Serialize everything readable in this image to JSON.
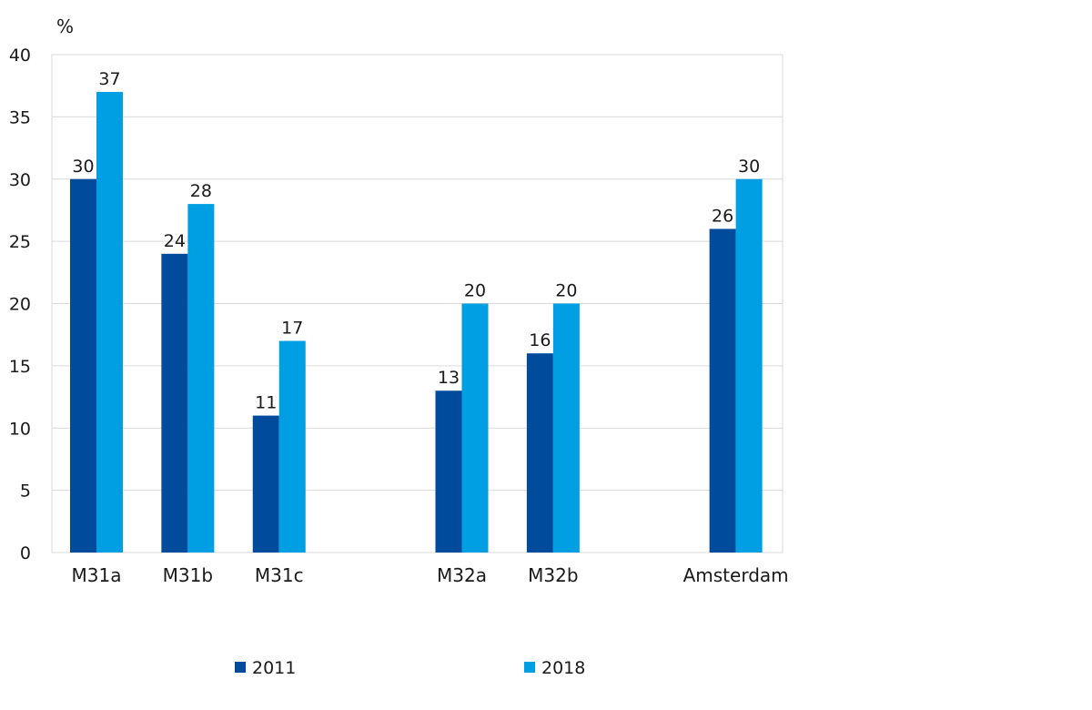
{
  "chart_data": {
    "type": "bar",
    "ylabel": "%",
    "ylim": [
      0,
      40
    ],
    "yticks": [
      0,
      5,
      10,
      15,
      20,
      25,
      30,
      35,
      40
    ],
    "grid": true,
    "legend_position": "bottom",
    "groups": [
      {
        "label": "M31a",
        "values": [
          30,
          37
        ]
      },
      {
        "label": "M31b",
        "values": [
          24,
          28
        ]
      },
      {
        "label": "M31c",
        "values": [
          11,
          17
        ]
      },
      {
        "label": "",
        "values": [
          null,
          null
        ]
      },
      {
        "label": "M32a",
        "values": [
          13,
          20
        ]
      },
      {
        "label": "M32b",
        "values": [
          16,
          20
        ]
      },
      {
        "label": "",
        "values": [
          null,
          null
        ]
      },
      {
        "label": "Amsterdam",
        "values": [
          26,
          30
        ]
      }
    ],
    "series": [
      {
        "name": "2011",
        "color": "#004b9b"
      },
      {
        "name": "2018",
        "color": "#009fe3"
      }
    ]
  }
}
